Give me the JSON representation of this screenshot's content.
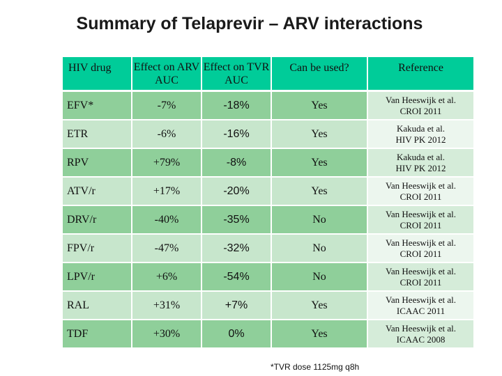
{
  "title": "Summary of Telaprevir – ARV interactions",
  "table": {
    "headers": {
      "drug": "HIV drug",
      "arv_auc": "Effect on ARV AUC",
      "tvr_auc": "Effect on TVR AUC",
      "can_use": "Can be used?",
      "reference": "Reference"
    },
    "rows": [
      {
        "drug": "EFV*",
        "arv_auc": "-7%",
        "tvr_auc": "-18%",
        "can_use": "Yes",
        "ref_line1": "Van Heeswijk et al.",
        "ref_line2": "CROI 2011"
      },
      {
        "drug": "ETR",
        "arv_auc": "-6%",
        "tvr_auc": "-16%",
        "can_use": "Yes",
        "ref_line1": "Kakuda et al.",
        "ref_line2": "HIV PK 2012"
      },
      {
        "drug": "RPV",
        "arv_auc": "+79%",
        "tvr_auc": "-8%",
        "can_use": "Yes",
        "ref_line1": "Kakuda et al.",
        "ref_line2": "HIV PK 2012"
      },
      {
        "drug": "ATV/r",
        "arv_auc": "+17%",
        "tvr_auc": "-20%",
        "can_use": "Yes",
        "ref_line1": "Van Heeswijk et al.",
        "ref_line2": "CROI 2011"
      },
      {
        "drug": "DRV/r",
        "arv_auc": "-40%",
        "tvr_auc": "-35%",
        "can_use": "No",
        "ref_line1": "Van Heeswijk et al.",
        "ref_line2": "CROI 2011"
      },
      {
        "drug": "FPV/r",
        "arv_auc": "-47%",
        "tvr_auc": "-32%",
        "can_use": "No",
        "ref_line1": "Van Heeswijk et al.",
        "ref_line2": "CROI 2011"
      },
      {
        "drug": "LPV/r",
        "arv_auc": "+6%",
        "tvr_auc": "-54%",
        "can_use": "No",
        "ref_line1": "Van Heeswijk et al.",
        "ref_line2": "CROI 2011"
      },
      {
        "drug": "RAL",
        "arv_auc": "+31%",
        "tvr_auc": "+7%",
        "can_use": "Yes",
        "ref_line1": "Van Heeswijk et al.",
        "ref_line2": "ICAAC 2011"
      },
      {
        "drug": "TDF",
        "arv_auc": "+30%",
        "tvr_auc": "0%",
        "can_use": "Yes",
        "ref_line1": "Van Heeswijk et al.",
        "ref_line2": "ICAAC 2008"
      }
    ]
  },
  "footnote": "*TVR dose 1125mg q8h"
}
